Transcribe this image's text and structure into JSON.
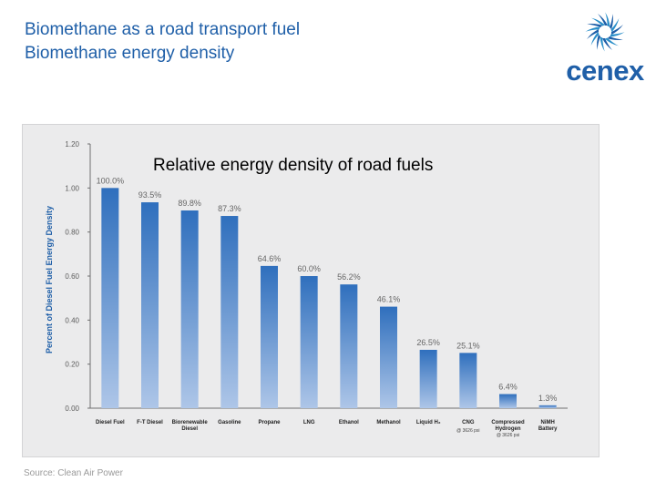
{
  "slide": {
    "title_line1": "Biomethane as a road transport fuel",
    "title_line2": "Biomethane energy density",
    "source": "Source: Clean Air Power"
  },
  "logo": {
    "text": "cenex",
    "icon": "cenex-swirl-icon",
    "color": "#1f5fa8"
  },
  "colors": {
    "title": "#1f5fa8",
    "bar_top": "#2f6fbd",
    "bar_bottom": "#aec6e8",
    "panel": "#ebebec"
  },
  "chart_data": {
    "type": "bar",
    "title": "Relative energy density of road fuels",
    "ylabel": "Percent of Diesel Fuel Energy Density",
    "xlabel": "",
    "ylim": [
      0,
      1.2
    ],
    "yticks": [
      "0.00",
      "0.20",
      "0.40",
      "0.60",
      "0.80",
      "1.00",
      "1.20"
    ],
    "grid": false,
    "categories": [
      {
        "line1": "Diesel Fuel",
        "line2": "",
        "note": ""
      },
      {
        "line1": "F-T Diesel",
        "line2": "",
        "note": ""
      },
      {
        "line1": "Biorenewable",
        "line2": "Diesel",
        "note": ""
      },
      {
        "line1": "Gasoline",
        "line2": "",
        "note": ""
      },
      {
        "line1": "Propane",
        "line2": "",
        "note": ""
      },
      {
        "line1": "LNG",
        "line2": "",
        "note": ""
      },
      {
        "line1": "Ethanol",
        "line2": "",
        "note": ""
      },
      {
        "line1": "Methanol",
        "line2": "",
        "note": ""
      },
      {
        "line1": "Liquid H₂",
        "line2": "",
        "note": ""
      },
      {
        "line1": "CNG",
        "line2": "",
        "note": "@ 3626 psi"
      },
      {
        "line1": "Compressed",
        "line2": "Hydrogen",
        "note": "@ 3626 psi"
      },
      {
        "line1": "NiMH",
        "line2": "Battery",
        "note": ""
      }
    ],
    "values": [
      1.0,
      0.935,
      0.898,
      0.873,
      0.646,
      0.6,
      0.562,
      0.461,
      0.265,
      0.251,
      0.064,
      0.013
    ],
    "data_labels": [
      "100.0%",
      "93.5%",
      "89.8%",
      "87.3%",
      "64.6%",
      "60.0%",
      "56.2%",
      "46.1%",
      "26.5%",
      "25.1%",
      "6.4%",
      "1.3%"
    ]
  }
}
